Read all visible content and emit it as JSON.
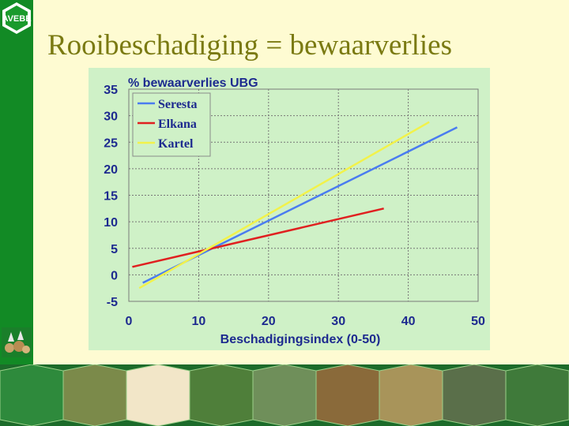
{
  "slide": {
    "title": "Rooibeschadiging = bewaarverlies",
    "logo_text": "AVEBE",
    "sidebar_color": "#128a25",
    "background_color": "#fefbd2"
  },
  "chart_data": {
    "type": "line",
    "title": "% bewaarverlies UBG",
    "xlabel": "Beschadigingsindex (0-50)",
    "ylabel": "",
    "xlim": [
      0,
      50
    ],
    "ylim": [
      -5,
      35
    ],
    "xticks": [
      "0",
      "10",
      "20",
      "30",
      "40",
      "50"
    ],
    "yticks": [
      "-5",
      "0",
      "5",
      "10",
      "15",
      "20",
      "25",
      "30",
      "35"
    ],
    "grid": true,
    "legend_position": "top-left",
    "series": [
      {
        "name": "Seresta",
        "color": "#4a7cf0",
        "x": [
          2,
          47
        ],
        "y": [
          -1.5,
          27.8
        ]
      },
      {
        "name": "Elkana",
        "color": "#e02020",
        "x": [
          0.5,
          36.5
        ],
        "y": [
          1.5,
          12.5
        ]
      },
      {
        "name": "Kartel",
        "color": "#f2f24a",
        "x": [
          1.5,
          43
        ],
        "y": [
          -2.5,
          28.8
        ]
      }
    ]
  }
}
